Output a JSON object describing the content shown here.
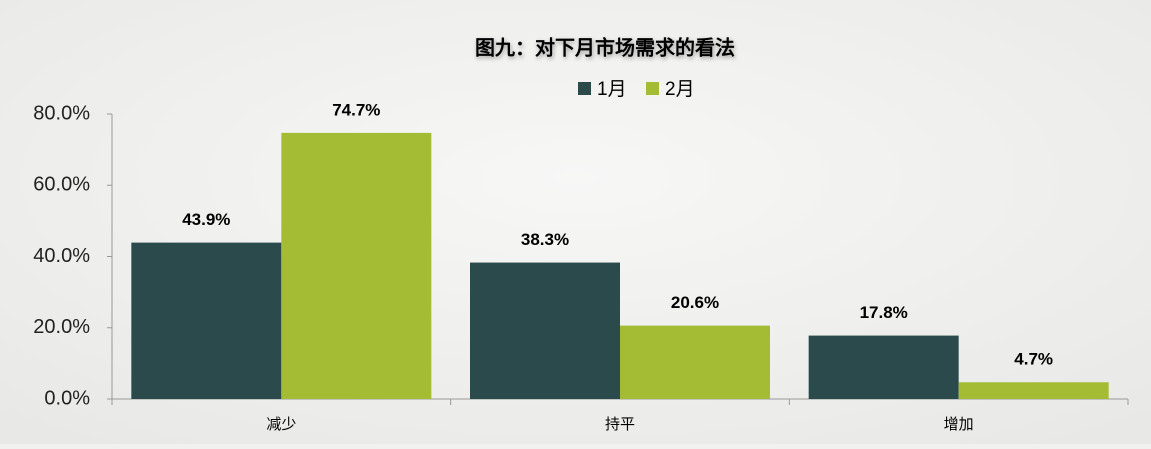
{
  "chart_data": {
    "type": "bar",
    "title": "图九：对下月市场需求的看法",
    "categories": [
      "减少",
      "持平",
      "增加"
    ],
    "series": [
      {
        "name": "1月",
        "color": "#2a4a4b",
        "values": [
          43.9,
          38.3,
          17.8
        ],
        "value_labels": [
          "43.9%",
          "38.3%",
          "17.8%"
        ]
      },
      {
        "name": "2月",
        "color": "#a4bb34",
        "values": [
          74.7,
          20.6,
          4.7
        ],
        "value_labels": [
          "74.7%",
          "20.6%",
          "4.7%"
        ]
      }
    ],
    "ylim": [
      0,
      80
    ],
    "yticks": [
      {
        "value": 0,
        "label": "0.0%"
      },
      {
        "value": 20,
        "label": "20.0%"
      },
      {
        "value": 40,
        "label": "40.0%"
      },
      {
        "value": 60,
        "label": "60.0%"
      },
      {
        "value": 80,
        "label": "80.0%"
      }
    ],
    "grid": false,
    "legend": "top"
  }
}
